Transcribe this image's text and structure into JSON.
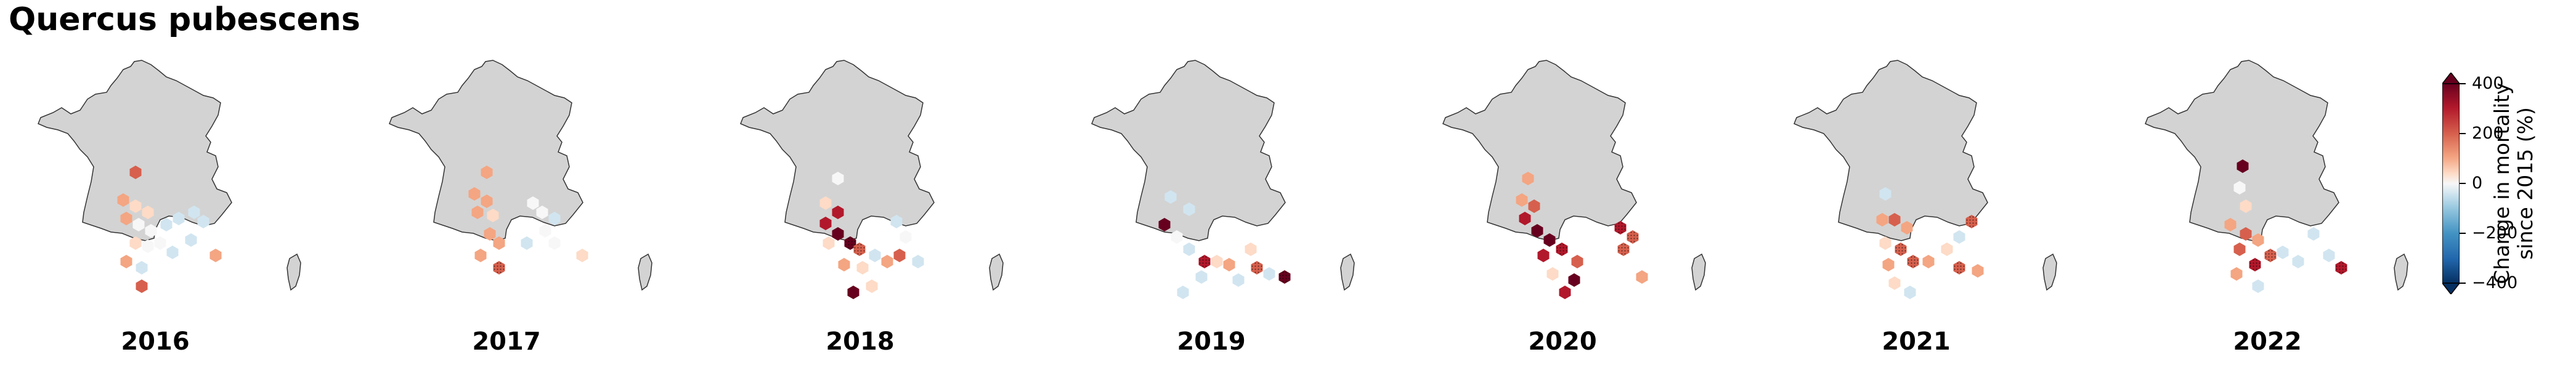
{
  "title": "Quercus pubescens",
  "years": [
    "2016",
    "2017",
    "2018",
    "2019",
    "2020",
    "2021",
    "2022"
  ],
  "colorbar": {
    "label_line1": "Change in mortality",
    "label_line2": "since 2015 (%)",
    "ticks": [
      "400",
      "200",
      "0",
      "−200",
      "−400"
    ],
    "colors": [
      "#67001f",
      "#b2182b",
      "#d6604d",
      "#f4a582",
      "#fddbc7",
      "#f7f7f7",
      "#d1e5f0",
      "#92c5de",
      "#4393c3",
      "#2166ac",
      "#053061"
    ]
  },
  "map_colors": {
    "land": "#d3d3d3",
    "border": "#333333"
  },
  "chart_data": {
    "type": "heatmap",
    "title": "Quercus pubescens",
    "panels": [
      "2016",
      "2017",
      "2018",
      "2019",
      "2020",
      "2021",
      "2022"
    ],
    "colorbar_label": "Change in mortality since 2015 (%)",
    "colorbar_range": [
      -400,
      400
    ],
    "colorbar_ticks": [
      -400,
      -200,
      0,
      200,
      400
    ]
  }
}
